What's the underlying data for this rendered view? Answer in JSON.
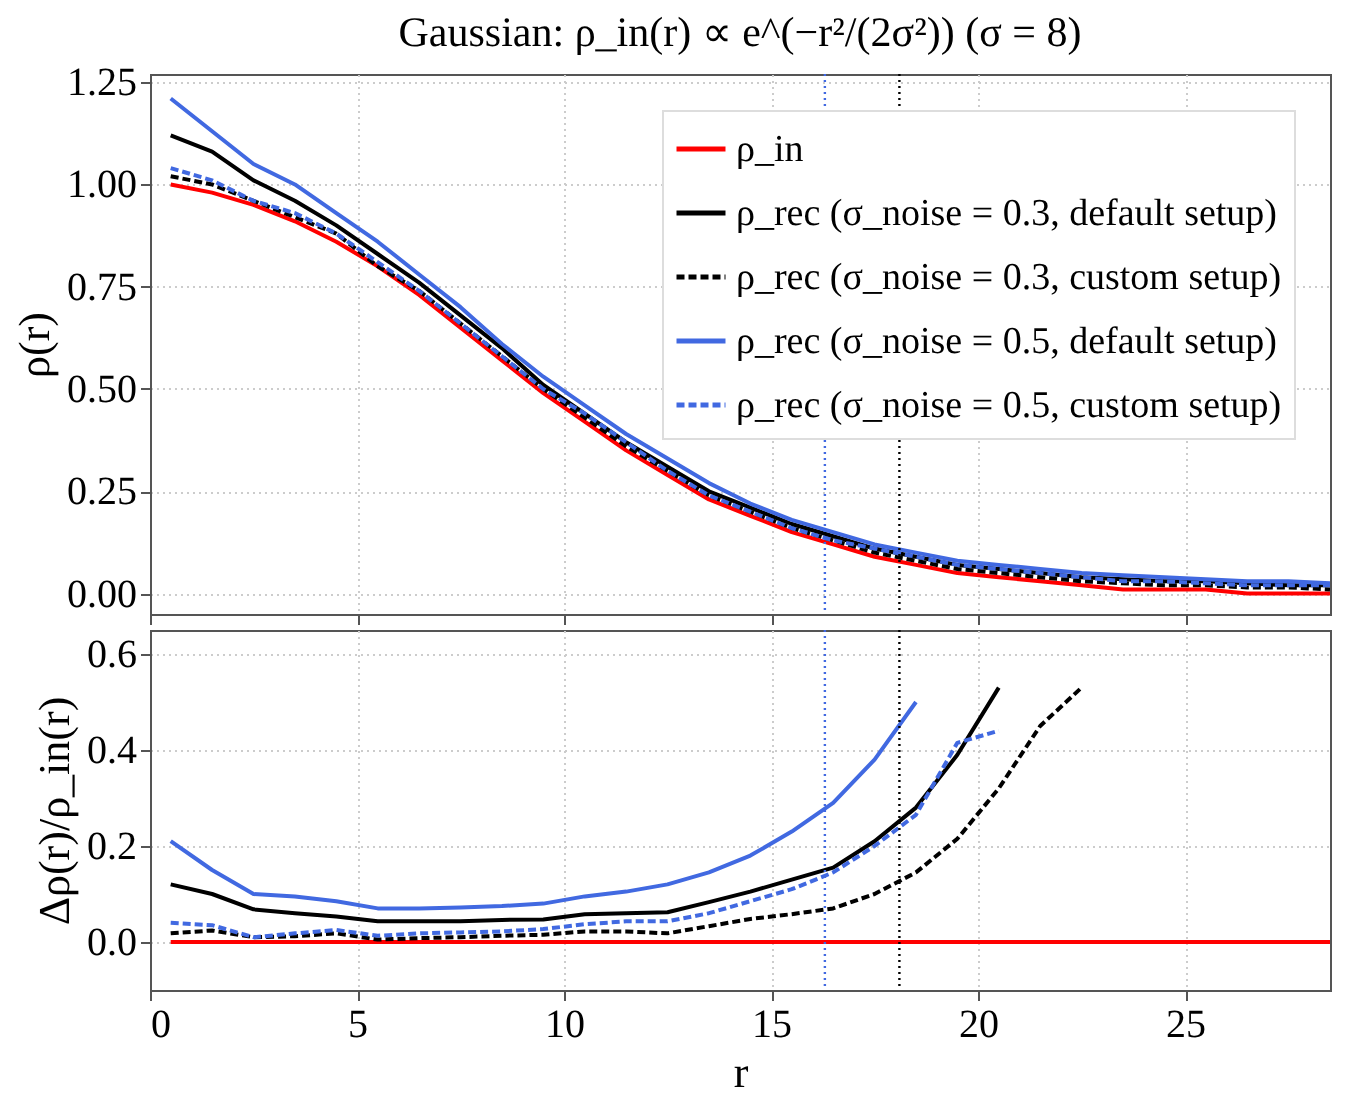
{
  "chart_data": [
    {
      "type": "line",
      "title": "Gaussian: ρ_in(r) ∝ e^(−r²/(2σ²)) (σ = 8)",
      "ylabel": "ρ(r)",
      "x": [
        0.5,
        1.5,
        2.5,
        3.5,
        4.5,
        5.5,
        6.5,
        7.5,
        8.5,
        9.5,
        10.5,
        11.5,
        12.5,
        13.5,
        14.5,
        15.5,
        16.5,
        17.5,
        18.5,
        19.5,
        20.5,
        21.5,
        22.5,
        23.5,
        24.5,
        25.5,
        26.5,
        27.5,
        28.5
      ],
      "series": [
        {
          "name": "ρ_in",
          "color": "#ff0000",
          "line_style": "solid",
          "values": [
            1.0,
            0.98,
            0.95,
            0.91,
            0.86,
            0.8,
            0.73,
            0.65,
            0.57,
            0.49,
            0.42,
            0.35,
            0.29,
            0.23,
            0.19,
            0.15,
            0.12,
            0.09,
            0.07,
            0.05,
            0.04,
            0.03,
            0.02,
            0.01,
            0.01,
            0.01,
            0.0,
            0.0,
            0.0
          ]
        },
        {
          "name": "ρ_rec (σ_noise = 0.3, default setup)",
          "color": "#000000",
          "line_style": "solid",
          "values": [
            1.12,
            1.08,
            1.01,
            0.96,
            0.9,
            0.83,
            0.76,
            0.68,
            0.6,
            0.51,
            0.44,
            0.37,
            0.31,
            0.25,
            0.21,
            0.17,
            0.14,
            0.11,
            0.09,
            0.07,
            0.06,
            0.05,
            0.04,
            0.035,
            0.03,
            0.03,
            0.025,
            0.02,
            0.02
          ]
        },
        {
          "name": "ρ_rec (σ_noise = 0.3, custom setup)",
          "color": "#000000",
          "line_style": "dashed",
          "values": [
            1.02,
            1.0,
            0.96,
            0.92,
            0.88,
            0.8,
            0.74,
            0.66,
            0.58,
            0.5,
            0.43,
            0.36,
            0.3,
            0.24,
            0.2,
            0.16,
            0.13,
            0.1,
            0.08,
            0.06,
            0.05,
            0.04,
            0.03,
            0.025,
            0.02,
            0.02,
            0.015,
            0.015,
            0.01
          ]
        },
        {
          "name": "ρ_rec (σ_noise = 0.5, default setup)",
          "color": "#4169e1",
          "line_style": "solid",
          "values": [
            1.21,
            1.13,
            1.05,
            1.0,
            0.93,
            0.86,
            0.78,
            0.7,
            0.61,
            0.53,
            0.46,
            0.39,
            0.33,
            0.27,
            0.22,
            0.18,
            0.15,
            0.12,
            0.1,
            0.08,
            0.07,
            0.06,
            0.05,
            0.045,
            0.04,
            0.035,
            0.03,
            0.03,
            0.025
          ]
        },
        {
          "name": "ρ_rec (σ_noise = 0.5, custom setup)",
          "color": "#4169e1",
          "line_style": "dashed",
          "values": [
            1.04,
            1.01,
            0.96,
            0.93,
            0.88,
            0.81,
            0.74,
            0.66,
            0.58,
            0.5,
            0.44,
            0.37,
            0.3,
            0.24,
            0.2,
            0.16,
            0.13,
            0.11,
            0.09,
            0.07,
            0.06,
            0.05,
            0.04,
            0.03,
            0.03,
            0.025,
            0.02,
            0.02,
            0.02
          ]
        }
      ],
      "xlim": [
        0,
        28.5
      ],
      "xticks": [
        0,
        5,
        10,
        15,
        20,
        25
      ],
      "ylim": [
        -0.05,
        1.27
      ],
      "yticks": [
        {
          "value": 0,
          "label": "0.00"
        },
        {
          "value": 0.25,
          "label": "0.25"
        },
        {
          "value": 0.5,
          "label": "0.50"
        },
        {
          "value": 0.75,
          "label": "0.75"
        },
        {
          "value": 1,
          "label": "1.00"
        },
        {
          "value": 1.25,
          "label": "1.25"
        }
      ],
      "grid": true,
      "legend": "top right",
      "tick_labels": "y",
      "ref_lines": [
        {
          "axis": "x",
          "value": 16.3,
          "color": "#4169e1",
          "line_style": "dotted"
        },
        {
          "axis": "x",
          "value": 18.1,
          "color": "#000000",
          "line_style": "dotted"
        }
      ]
    },
    {
      "type": "line",
      "xlabel": "r",
      "ylabel": "Δρ(r)/ρ_in(r)",
      "x": [
        0.5,
        1.5,
        2.5,
        3.5,
        4.5,
        5.5,
        6.5,
        7.5,
        8.5,
        9.5,
        10.5,
        11.5,
        12.5,
        13.5,
        14.5,
        15.5,
        16.5,
        17.5,
        18.5,
        19.5,
        20.5,
        21.5,
        22.5,
        23.5,
        24.5,
        25.5,
        26.5,
        27.5,
        28.5
      ],
      "series": [
        {
          "color": "#ff0000",
          "line_style": "solid",
          "values": [
            0,
            0,
            0,
            0,
            0,
            0,
            0,
            0,
            0,
            0,
            0,
            0,
            0,
            0,
            0,
            0,
            0,
            0,
            0,
            0,
            0,
            0,
            0,
            0,
            0,
            0,
            0,
            0,
            0
          ]
        },
        {
          "color": "#000000",
          "line_style": "solid",
          "values": [
            0.12,
            0.1,
            0.068,
            0.06,
            0.053,
            0.043,
            0.043,
            0.043,
            0.046,
            0.047,
            0.058,
            0.06,
            0.062,
            0.083,
            0.105,
            0.13,
            0.155,
            0.21,
            0.28,
            0.39,
            0.53,
            null,
            null,
            null,
            null,
            null,
            null,
            null,
            null
          ]
        },
        {
          "color": "#000000",
          "line_style": "dashed",
          "values": [
            0.018,
            0.024,
            0.01,
            0.012,
            0.018,
            0.005,
            0.008,
            0.01,
            0.013,
            0.015,
            0.022,
            0.022,
            0.018,
            0.033,
            0.048,
            0.058,
            0.07,
            0.1,
            0.145,
            0.215,
            0.32,
            0.45,
            0.53,
            null,
            null,
            null,
            null,
            null,
            null
          ]
        },
        {
          "color": "#4169e1",
          "line_style": "solid",
          "values": [
            0.21,
            0.15,
            0.1,
            0.095,
            0.085,
            0.07,
            0.07,
            0.072,
            0.075,
            0.08,
            0.095,
            0.105,
            0.12,
            0.145,
            0.18,
            0.23,
            0.29,
            0.38,
            0.5,
            null,
            null,
            null,
            null,
            null,
            null,
            null,
            null,
            null,
            null
          ]
        },
        {
          "color": "#4169e1",
          "line_style": "dashed",
          "values": [
            0.04,
            0.035,
            0.01,
            0.018,
            0.025,
            0.013,
            0.018,
            0.02,
            0.022,
            0.027,
            0.037,
            0.043,
            0.043,
            0.06,
            0.085,
            0.11,
            0.145,
            0.2,
            0.265,
            0.415,
            0.44,
            null,
            null,
            null,
            null,
            null,
            null,
            null,
            null
          ]
        }
      ],
      "xlim": [
        0,
        28.5
      ],
      "xticks": [
        0,
        5,
        10,
        15,
        20,
        25
      ],
      "ylim": [
        -0.1,
        0.65
      ],
      "yticks": [
        {
          "value": 0,
          "label": "0.0"
        },
        {
          "value": 0.2,
          "label": "0.2"
        },
        {
          "value": 0.4,
          "label": "0.4"
        },
        {
          "value": 0.6,
          "label": "0.6"
        }
      ],
      "grid": true,
      "ref_lines": [
        {
          "axis": "x",
          "value": 16.3,
          "color": "#4169e1",
          "line_style": "dotted"
        },
        {
          "axis": "x",
          "value": 18.1,
          "color": "#000000",
          "line_style": "dotted"
        }
      ]
    }
  ]
}
